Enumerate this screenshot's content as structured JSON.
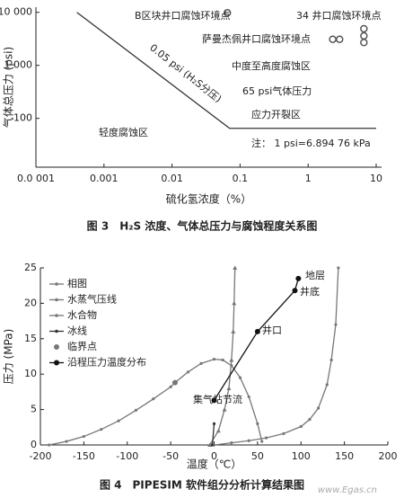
{
  "chart_data": [
    {
      "type": "line",
      "log_x": true,
      "log_y": true,
      "x_label": "硫化氢浓度（%）",
      "y_label": "气体总压力 (psi)",
      "caption": "图 3　H₂S 浓度、气体总压力与腐蚀程度关系图",
      "xlim": [
        0.0001,
        12
      ],
      "ylim": [
        12,
        12500
      ],
      "xticks": [
        {
          "value": 0.0001,
          "label": "0.0 001"
        },
        0.001,
        0.01,
        0.1,
        1,
        10
      ],
      "yticks": [
        100,
        {
          "value": 1000,
          "label": "1 000"
        },
        {
          "value": 10000,
          "label": "10 000"
        }
      ],
      "series": [
        {
          "color": "#333333",
          "line": true,
          "marker": "none",
          "x": [
            0.0004,
            0.07,
            10
          ],
          "values": [
            10000,
            65,
            65
          ]
        },
        {
          "color": "#555555",
          "line": false,
          "marker": "ring",
          "x": [
            0.065
          ],
          "values": [
            9800
          ]
        },
        {
          "color": "#555555",
          "line": false,
          "marker": "ring",
          "x": [
            6.6,
            6.6,
            6.6
          ],
          "values": [
            4900,
            3600,
            2700
          ]
        },
        {
          "color": "#555555",
          "line": false,
          "marker": "ring",
          "x": [
            2.3,
            2.9
          ],
          "values": [
            3100,
            3100
          ]
        }
      ],
      "annotations": [
        "B区块井口腐蚀环境点",
        "34 井口腐蚀环境点",
        "萨曼杰佩井口腐蚀环境点",
        "0.05 psi (H₂S分压)",
        "中度至高度腐蚀区",
        "65 psi气体压力",
        "应力开裂区",
        "轻度腐蚀区",
        "注：  1 psi=6.894 76 kPa"
      ]
    },
    {
      "type": "line",
      "log_x": false,
      "log_y": false,
      "x_label": "温度（℃）",
      "y_label": "压力 (MPa)",
      "caption": "图 4　PIPESIM 软件组分分析计算结果图",
      "xlim": [
        -200,
        200
      ],
      "ylim": [
        0,
        25
      ],
      "xticks": [
        -200,
        -150,
        -100,
        -50,
        0,
        50,
        100,
        150,
        200
      ],
      "yticks": [
        0,
        5,
        10,
        15,
        20,
        25
      ],
      "series": [
        {
          "name": "相图",
          "color": "#777777",
          "line": true,
          "marker": "dot",
          "x": [
            -190,
            -170,
            -150,
            -130,
            -110,
            -90,
            -70,
            -50,
            -45,
            -30,
            -15,
            0,
            10,
            20,
            30,
            40,
            50,
            55
          ],
          "values": [
            0,
            0.5,
            1.2,
            2.2,
            3.4,
            4.9,
            6.5,
            8.2,
            8.8,
            10.3,
            11.5,
            12.1,
            12,
            11.2,
            9.5,
            6.8,
            3.0,
            0.5
          ]
        },
        {
          "name": "水蒸气压线",
          "color": "#777777",
          "line": true,
          "marker": "dot",
          "x": [
            0,
            20,
            40,
            60,
            80,
            100,
            110,
            120,
            130,
            135,
            140,
            143
          ],
          "values": [
            0,
            0.3,
            0.6,
            1,
            1.6,
            2.6,
            3.6,
            5.2,
            8.5,
            12,
            17,
            25
          ]
        },
        {
          "name": "水合物",
          "color": "#777777",
          "line": true,
          "marker": "tri",
          "x": [
            -5,
            5,
            12,
            17,
            20,
            22,
            23,
            24
          ],
          "values": [
            0,
            2,
            5,
            8,
            12,
            16,
            20,
            25
          ]
        },
        {
          "name": "冰线",
          "color": "#333333",
          "line": true,
          "marker": "dot",
          "x": [
            -2,
            0
          ],
          "values": [
            0,
            3
          ]
        },
        {
          "name": "临界点",
          "color": "#777777",
          "line": false,
          "marker": "big",
          "x": [
            -45
          ],
          "values": [
            8.8
          ]
        },
        {
          "name": "沿程压力温度分布",
          "color": "#111111",
          "line": true,
          "marker": "big",
          "x": [
            0,
            50,
            93,
            97
          ],
          "values": [
            6.3,
            16,
            21.8,
            23.5
          ]
        }
      ],
      "annotations": [
        "地层",
        "井底",
        "井口",
        "集气站节流"
      ]
    }
  ],
  "watermark": "www.Egas.cn"
}
